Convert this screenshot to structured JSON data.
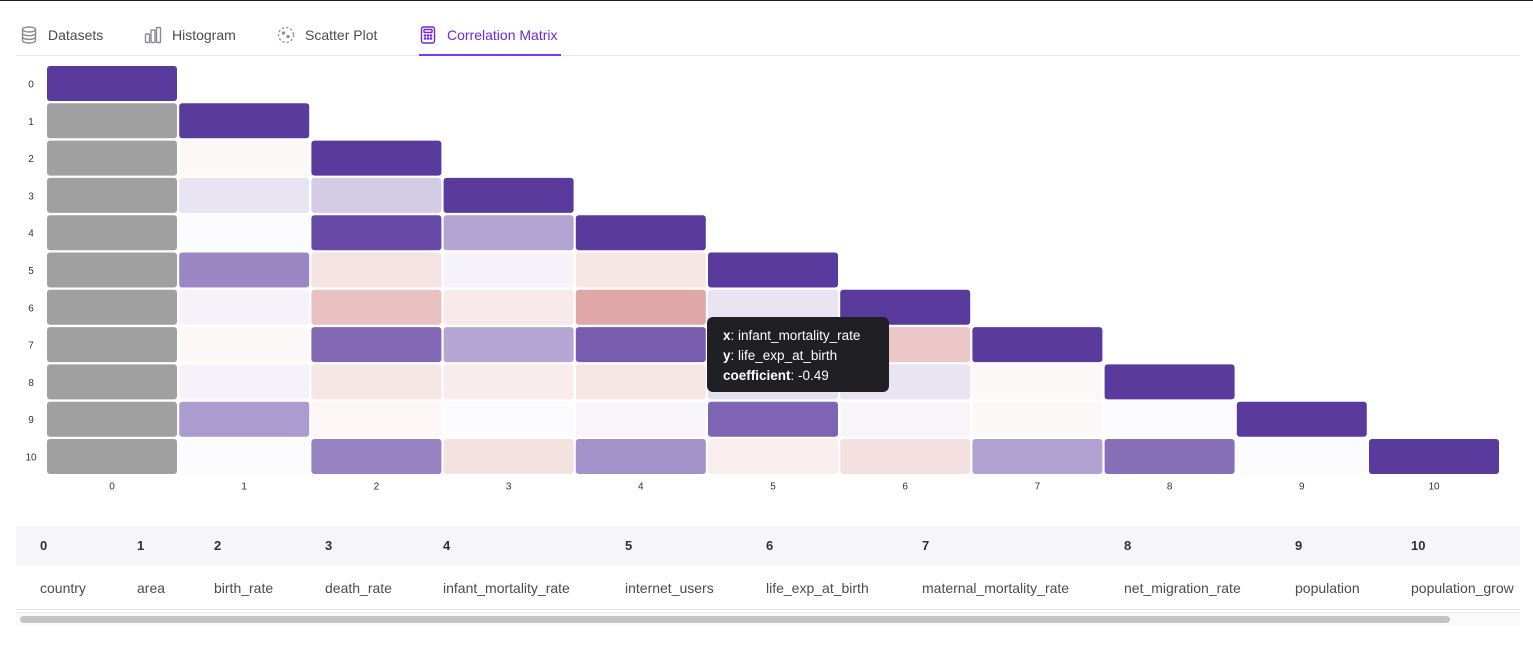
{
  "tabs": [
    {
      "label": "Datasets",
      "icon": "database-icon"
    },
    {
      "label": "Histogram",
      "icon": "bar-chart-icon"
    },
    {
      "label": "Scatter Plot",
      "icon": "scatter-icon"
    },
    {
      "label": "Correlation Matrix",
      "icon": "calculator-icon"
    }
  ],
  "active_tab": "Correlation Matrix",
  "tooltip": {
    "x_label": "x",
    "x_value": "infant_mortality_rate",
    "y_label": "y",
    "y_value": "life_exp_at_birth",
    "coef_label": "coefficient",
    "coef_value": "-0.49"
  },
  "chart_data": {
    "type": "heatmap",
    "x_tick_labels": [
      "0",
      "1",
      "2",
      "3",
      "4",
      "5",
      "6",
      "7",
      "8",
      "9",
      "10"
    ],
    "y_tick_labels": [
      "0",
      "1",
      "2",
      "3",
      "4",
      "5",
      "6",
      "7",
      "8",
      "9",
      "10"
    ],
    "colors": {
      "positive": "#5b3a9e",
      "negative": "#c0504d",
      "undefined": "#a0a0a0"
    },
    "matrix": [
      [
        1
      ],
      [
        null,
        1
      ],
      [
        null,
        -0.02,
        1
      ],
      [
        null,
        0.12,
        0.25,
        1
      ],
      [
        null,
        0.0,
        0.92,
        0.45,
        1
      ],
      [
        null,
        0.6,
        -0.14,
        0.04,
        -0.12,
        1
      ],
      [
        null,
        0.04,
        -0.34,
        -0.1,
        -0.49,
        0.12,
        1
      ],
      [
        null,
        -0.02,
        0.76,
        0.44,
        0.82,
        -0.49,
        -0.3,
        1
      ],
      [
        null,
        0.04,
        -0.12,
        -0.09,
        -0.12,
        0.14,
        0.12,
        -0.02,
        1
      ],
      [
        null,
        0.5,
        -0.03,
        0.0,
        0.03,
        0.78,
        0.03,
        -0.02,
        0.0,
        1
      ],
      [
        null,
        0.0,
        0.63,
        -0.15,
        0.55,
        -0.08,
        -0.16,
        0.46,
        0.72,
        0.0,
        1
      ]
    ]
  },
  "table": {
    "headers": [
      "0",
      "1",
      "2",
      "3",
      "4",
      "5",
      "6",
      "7",
      "8",
      "9",
      "10"
    ],
    "row": [
      "country",
      "area",
      "birth_rate",
      "death_rate",
      "infant_mortality_rate",
      "internet_users",
      "life_exp_at_birth",
      "maternal_mortality_rate",
      "net_migration_rate",
      "population",
      "population_grow"
    ]
  }
}
